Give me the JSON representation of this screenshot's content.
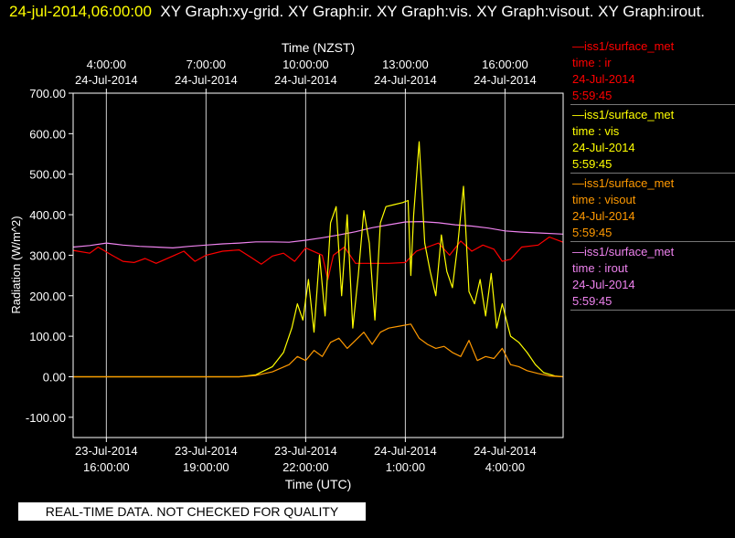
{
  "header": {
    "timestamp": "24-jul-2014,06:00:00",
    "titles": "XY Graph:xy-grid.  XY Graph:ir.  XY Graph:vis.  XY Graph:visout.  XY Graph:irout."
  },
  "legend": [
    {
      "source": "—iss1/surface_met",
      "var": "time : ir",
      "date": "24-Jul-2014",
      "time": "5:59:45",
      "color": "#ff0000"
    },
    {
      "source": "—iss1/surface_met",
      "var": "time : vis",
      "date": "24-Jul-2014",
      "time": "5:59:45",
      "color": "#ffff00"
    },
    {
      "source": "—iss1/surface_met",
      "var": "time : visout",
      "date": "24-Jul-2014",
      "time": "5:59:45",
      "color": "#ff9900"
    },
    {
      "source": "—iss1/surface_met",
      "var": "time : irout",
      "date": "24-Jul-2014",
      "time": "5:59:45",
      "color": "#ee82ee"
    }
  ],
  "notice": "REAL-TIME DATA. NOT CHECKED FOR QUALITY",
  "chart_data": {
    "type": "line",
    "title": "",
    "xlabel": "Time (UTC)",
    "x2label": "Time (NZST)",
    "ylabel": "Radiation  (W/m^2)",
    "ylim": [
      -150,
      700
    ],
    "yticks": [
      "700.00",
      "600.00",
      "500.00",
      "400.00",
      "300.00",
      "200.00",
      "100.00",
      "0.00",
      "-100.00"
    ],
    "xlim": [
      "2014-07-23T15:00",
      "2014-07-24T05:45"
    ],
    "xticks": [
      {
        "t": "2014-07-23T16:00",
        "date": "23-Jul-2014",
        "time": "16:00:00"
      },
      {
        "t": "2014-07-23T19:00",
        "date": "23-Jul-2014",
        "time": "19:00:00"
      },
      {
        "t": "2014-07-23T22:00",
        "date": "23-Jul-2014",
        "time": "22:00:00"
      },
      {
        "t": "2014-07-24T01:00",
        "date": "24-Jul-2014",
        "time": "1:00:00"
      },
      {
        "t": "2014-07-24T04:00",
        "date": "24-Jul-2014",
        "time": "4:00:00"
      }
    ],
    "x2ticks": [
      {
        "date": "24-Jul-2014",
        "time": "4:00:00"
      },
      {
        "date": "24-Jul-2014",
        "time": "7:00:00"
      },
      {
        "date": "24-Jul-2014",
        "time": "10:00:00"
      },
      {
        "date": "24-Jul-2014",
        "time": "13:00:00"
      },
      {
        "date": "24-Jul-2014",
        "time": "16:00:00"
      }
    ],
    "grid": true,
    "legend": "right",
    "series": [
      {
        "name": "time : irout",
        "color": "#ee82ee",
        "points": [
          [
            "2014-07-23T15:00",
            320
          ],
          [
            "2014-07-23T15:30",
            324
          ],
          [
            "2014-07-23T16:00",
            330
          ],
          [
            "2014-07-23T16:30",
            325
          ],
          [
            "2014-07-23T17:00",
            322
          ],
          [
            "2014-07-23T17:30",
            320
          ],
          [
            "2014-07-23T18:00",
            318
          ],
          [
            "2014-07-23T18:30",
            322
          ],
          [
            "2014-07-23T19:00",
            325
          ],
          [
            "2014-07-23T19:30",
            328
          ],
          [
            "2014-07-23T20:00",
            330
          ],
          [
            "2014-07-23T20:30",
            333
          ],
          [
            "2014-07-23T21:00",
            333
          ],
          [
            "2014-07-23T21:30",
            332
          ],
          [
            "2014-07-23T22:00",
            337
          ],
          [
            "2014-07-23T22:30",
            343
          ],
          [
            "2014-07-23T23:00",
            350
          ],
          [
            "2014-07-23T23:30",
            358
          ],
          [
            "2014-07-24T00:00",
            368
          ],
          [
            "2014-07-24T00:30",
            375
          ],
          [
            "2014-07-24T01:00",
            382
          ],
          [
            "2014-07-24T01:30",
            383
          ],
          [
            "2014-07-24T02:00",
            380
          ],
          [
            "2014-07-24T02:30",
            375
          ],
          [
            "2014-07-24T03:00",
            372
          ],
          [
            "2014-07-24T03:30",
            367
          ],
          [
            "2014-07-24T04:00",
            360
          ],
          [
            "2014-07-24T04:30",
            357
          ],
          [
            "2014-07-24T05:00",
            355
          ],
          [
            "2014-07-24T05:45",
            352
          ]
        ]
      },
      {
        "name": "time : ir",
        "color": "#ff0000",
        "points": [
          [
            "2014-07-23T15:00",
            312
          ],
          [
            "2014-07-23T15:30",
            305
          ],
          [
            "2014-07-23T15:45",
            320
          ],
          [
            "2014-07-23T16:10",
            300
          ],
          [
            "2014-07-23T16:30",
            285
          ],
          [
            "2014-07-23T16:50",
            282
          ],
          [
            "2014-07-23T17:10",
            292
          ],
          [
            "2014-07-23T17:30",
            280
          ],
          [
            "2014-07-23T18:00",
            298
          ],
          [
            "2014-07-23T18:20",
            310
          ],
          [
            "2014-07-23T18:40",
            285
          ],
          [
            "2014-07-23T19:00",
            300
          ],
          [
            "2014-07-23T19:30",
            310
          ],
          [
            "2014-07-23T20:00",
            313
          ],
          [
            "2014-07-23T20:20",
            296
          ],
          [
            "2014-07-23T20:40",
            278
          ],
          [
            "2014-07-23T21:00",
            298
          ],
          [
            "2014-07-23T21:20",
            305
          ],
          [
            "2014-07-23T21:40",
            285
          ],
          [
            "2014-07-23T22:00",
            318
          ],
          [
            "2014-07-23T22:30",
            300
          ],
          [
            "2014-07-23T22:40",
            240
          ],
          [
            "2014-07-23T22:50",
            300
          ],
          [
            "2014-07-23T23:10",
            320
          ],
          [
            "2014-07-23T23:30",
            280
          ],
          [
            "2014-07-24T00:00",
            280
          ],
          [
            "2014-07-24T00:30",
            280
          ],
          [
            "2014-07-24T01:00",
            282
          ],
          [
            "2014-07-24T01:20",
            310
          ],
          [
            "2014-07-24T01:40",
            320
          ],
          [
            "2014-07-24T02:00",
            330
          ],
          [
            "2014-07-24T02:20",
            300
          ],
          [
            "2014-07-24T02:40",
            335
          ],
          [
            "2014-07-24T03:00",
            310
          ],
          [
            "2014-07-24T03:20",
            325
          ],
          [
            "2014-07-24T03:40",
            315
          ],
          [
            "2014-07-24T03:55",
            285
          ],
          [
            "2014-07-24T04:10",
            290
          ],
          [
            "2014-07-24T04:30",
            320
          ],
          [
            "2014-07-24T05:00",
            325
          ],
          [
            "2014-07-24T05:20",
            345
          ],
          [
            "2014-07-24T05:45",
            332
          ]
        ]
      },
      {
        "name": "time : vis",
        "color": "#ffff00",
        "points": [
          [
            "2014-07-23T15:00",
            0
          ],
          [
            "2014-07-23T17:00",
            0
          ],
          [
            "2014-07-23T19:00",
            0
          ],
          [
            "2014-07-23T20:00",
            0
          ],
          [
            "2014-07-23T20:30",
            5
          ],
          [
            "2014-07-23T21:00",
            25
          ],
          [
            "2014-07-23T21:20",
            60
          ],
          [
            "2014-07-23T21:35",
            120
          ],
          [
            "2014-07-23T21:45",
            180
          ],
          [
            "2014-07-23T21:55",
            140
          ],
          [
            "2014-07-23T22:05",
            240
          ],
          [
            "2014-07-23T22:15",
            110
          ],
          [
            "2014-07-23T22:25",
            300
          ],
          [
            "2014-07-23T22:35",
            150
          ],
          [
            "2014-07-23T22:45",
            380
          ],
          [
            "2014-07-23T22:55",
            420
          ],
          [
            "2014-07-23T23:05",
            200
          ],
          [
            "2014-07-23T23:15",
            400
          ],
          [
            "2014-07-23T23:25",
            120
          ],
          [
            "2014-07-23T23:35",
            250
          ],
          [
            "2014-07-23T23:45",
            410
          ],
          [
            "2014-07-23T23:55",
            330
          ],
          [
            "2014-07-24T00:05",
            140
          ],
          [
            "2014-07-24T00:15",
            380
          ],
          [
            "2014-07-24T00:25",
            420
          ],
          [
            "2014-07-24T00:40",
            425
          ],
          [
            "2014-07-24T00:55",
            430
          ],
          [
            "2014-07-24T01:05",
            435
          ],
          [
            "2014-07-24T01:10",
            250
          ],
          [
            "2014-07-24T01:15",
            400
          ],
          [
            "2014-07-24T01:25",
            580
          ],
          [
            "2014-07-24T01:35",
            330
          ],
          [
            "2014-07-24T01:45",
            260
          ],
          [
            "2014-07-24T01:55",
            200
          ],
          [
            "2014-07-24T02:05",
            350
          ],
          [
            "2014-07-24T02:15",
            260
          ],
          [
            "2014-07-24T02:25",
            220
          ],
          [
            "2014-07-24T02:35",
            330
          ],
          [
            "2014-07-24T02:45",
            470
          ],
          [
            "2014-07-24T02:55",
            210
          ],
          [
            "2014-07-24T03:05",
            180
          ],
          [
            "2014-07-24T03:15",
            240
          ],
          [
            "2014-07-24T03:25",
            150
          ],
          [
            "2014-07-24T03:35",
            255
          ],
          [
            "2014-07-24T03:45",
            120
          ],
          [
            "2014-07-24T03:55",
            180
          ],
          [
            "2014-07-24T04:10",
            100
          ],
          [
            "2014-07-24T04:25",
            85
          ],
          [
            "2014-07-24T04:40",
            60
          ],
          [
            "2014-07-24T04:55",
            30
          ],
          [
            "2014-07-24T05:10",
            10
          ],
          [
            "2014-07-24T05:30",
            2
          ],
          [
            "2014-07-24T05:45",
            0
          ]
        ]
      },
      {
        "name": "time : visout",
        "color": "#ff9900",
        "points": [
          [
            "2014-07-23T15:00",
            0
          ],
          [
            "2014-07-23T17:00",
            0
          ],
          [
            "2014-07-23T19:00",
            0
          ],
          [
            "2014-07-23T20:00",
            0
          ],
          [
            "2014-07-23T20:30",
            3
          ],
          [
            "2014-07-23T21:00",
            12
          ],
          [
            "2014-07-23T21:30",
            30
          ],
          [
            "2014-07-23T21:45",
            50
          ],
          [
            "2014-07-23T22:00",
            40
          ],
          [
            "2014-07-23T22:15",
            65
          ],
          [
            "2014-07-23T22:30",
            50
          ],
          [
            "2014-07-23T22:45",
            85
          ],
          [
            "2014-07-23T23:00",
            95
          ],
          [
            "2014-07-23T23:15",
            70
          ],
          [
            "2014-07-23T23:30",
            90
          ],
          [
            "2014-07-23T23:45",
            110
          ],
          [
            "2014-07-24T00:00",
            80
          ],
          [
            "2014-07-24T00:15",
            110
          ],
          [
            "2014-07-24T00:30",
            120
          ],
          [
            "2014-07-24T00:50",
            125
          ],
          [
            "2014-07-24T01:10",
            130
          ],
          [
            "2014-07-24T01:25",
            95
          ],
          [
            "2014-07-24T01:40",
            80
          ],
          [
            "2014-07-24T01:55",
            70
          ],
          [
            "2014-07-24T02:10",
            75
          ],
          [
            "2014-07-24T02:25",
            60
          ],
          [
            "2014-07-24T02:40",
            50
          ],
          [
            "2014-07-24T02:55",
            90
          ],
          [
            "2014-07-24T03:10",
            40
          ],
          [
            "2014-07-24T03:25",
            50
          ],
          [
            "2014-07-24T03:40",
            45
          ],
          [
            "2014-07-24T03:55",
            70
          ],
          [
            "2014-07-24T04:10",
            30
          ],
          [
            "2014-07-24T04:25",
            25
          ],
          [
            "2014-07-24T04:40",
            15
          ],
          [
            "2014-07-24T05:00",
            8
          ],
          [
            "2014-07-24T05:20",
            2
          ],
          [
            "2014-07-24T05:45",
            0
          ]
        ]
      }
    ]
  }
}
